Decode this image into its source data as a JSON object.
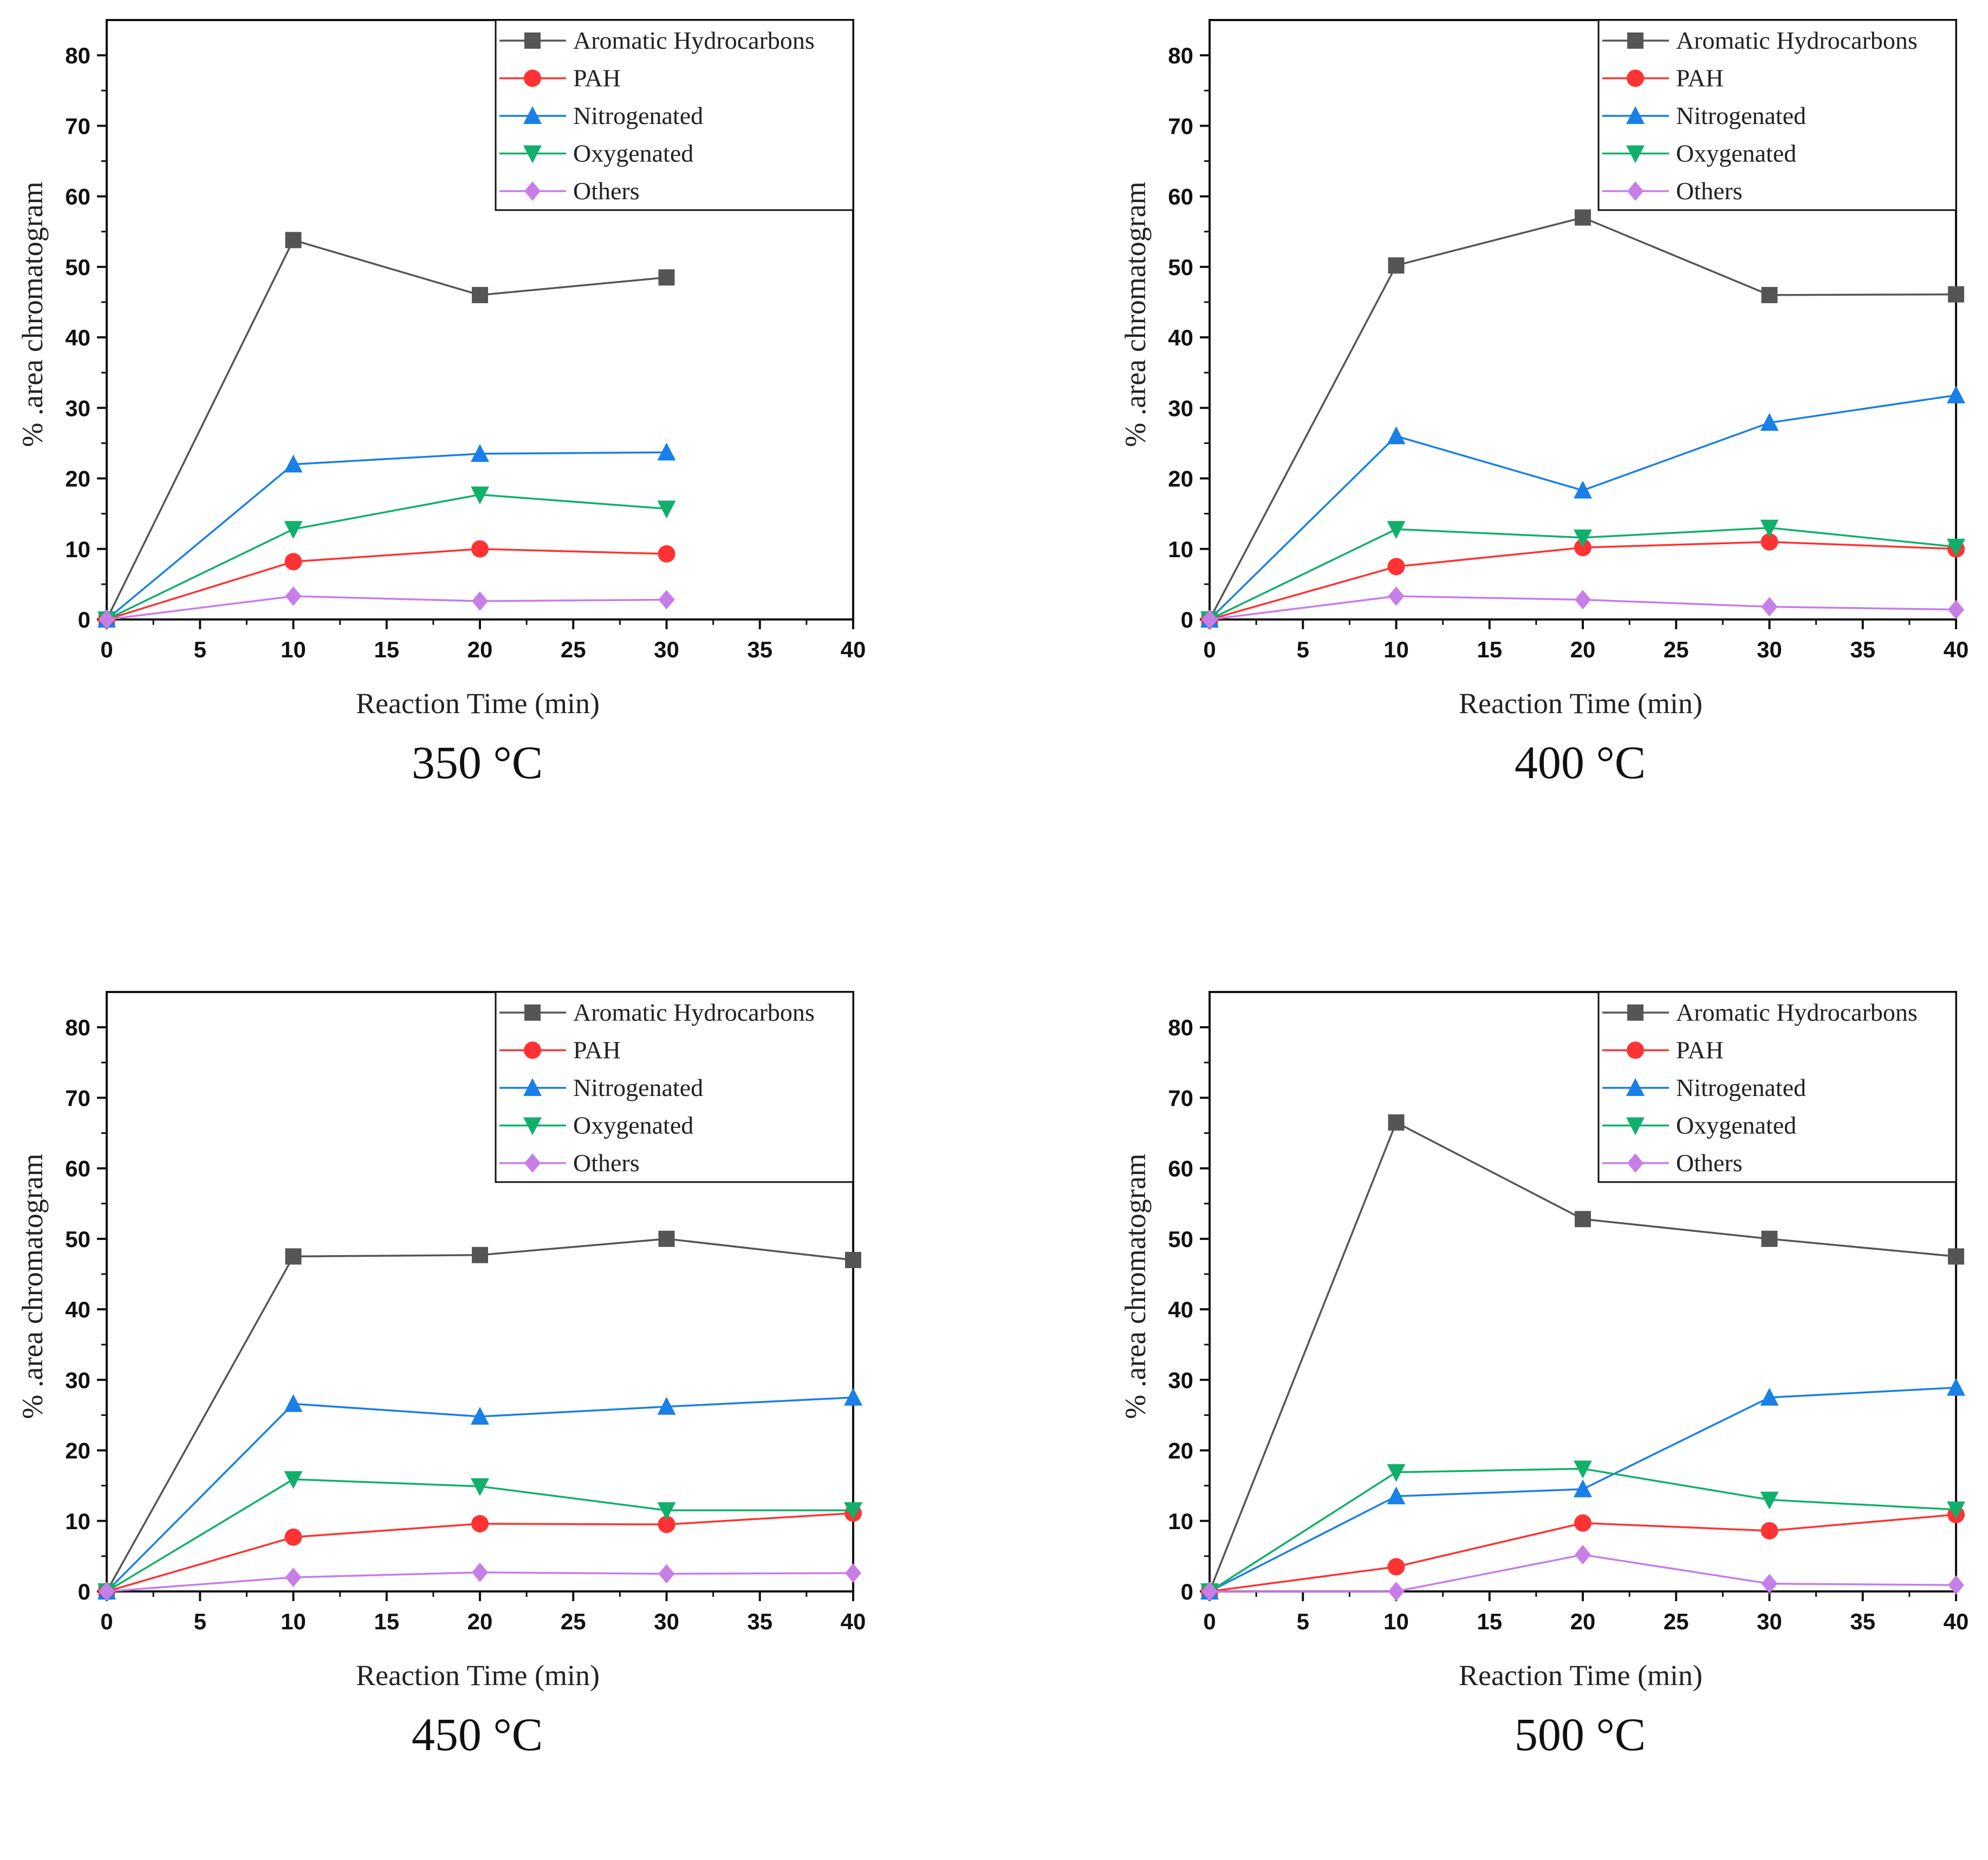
{
  "chart_data": [
    {
      "type": "line",
      "title": "350 °C",
      "xlabel": "Reaction Time (min)",
      "ylabel": "% .area chromatogram",
      "xlim": [
        0,
        40
      ],
      "ylim": [
        0,
        85
      ],
      "xticks": [
        0,
        5,
        10,
        15,
        20,
        25,
        30,
        35,
        40
      ],
      "yticks": [
        0,
        10,
        20,
        30,
        40,
        50,
        60,
        70,
        80
      ],
      "legend": "top-right",
      "x": [
        0,
        10,
        20,
        30
      ],
      "series": [
        {
          "name": "Aromatic Hydrocarbons",
          "color": "#555555",
          "marker": "square",
          "values": [
            0,
            53.8,
            46.0,
            48.5
          ]
        },
        {
          "name": "PAH",
          "color": "#ff3333",
          "marker": "circle",
          "values": [
            0,
            8.2,
            10.0,
            9.3
          ]
        },
        {
          "name": "Nitrogenated",
          "color": "#1a7fe6",
          "marker": "triangle-up",
          "values": [
            0,
            22.0,
            23.5,
            23.7
          ]
        },
        {
          "name": "Oxygenated",
          "color": "#11b06a",
          "marker": "triangle-down",
          "values": [
            0,
            12.8,
            17.7,
            15.7
          ]
        },
        {
          "name": "Others",
          "color": "#c77ee6",
          "marker": "diamond",
          "values": [
            0,
            3.3,
            2.6,
            2.8
          ]
        }
      ]
    },
    {
      "type": "line",
      "title": "400 °C",
      "xlabel": "Reaction Time (min)",
      "ylabel": "% .area chromatogram",
      "xlim": [
        0,
        40
      ],
      "ylim": [
        0,
        85
      ],
      "xticks": [
        0,
        5,
        10,
        15,
        20,
        25,
        30,
        35,
        40
      ],
      "yticks": [
        0,
        10,
        20,
        30,
        40,
        50,
        60,
        70,
        80
      ],
      "legend": "top-right",
      "x": [
        0,
        10,
        20,
        30,
        40
      ],
      "series": [
        {
          "name": "Aromatic Hydrocarbons",
          "color": "#555555",
          "marker": "square",
          "values": [
            0,
            50.2,
            57.0,
            46.0,
            46.1
          ]
        },
        {
          "name": "PAH",
          "color": "#ff3333",
          "marker": "circle",
          "values": [
            0,
            7.5,
            10.2,
            11.0,
            10.0
          ]
        },
        {
          "name": "Nitrogenated",
          "color": "#1a7fe6",
          "marker": "triangle-up",
          "values": [
            0,
            26.0,
            18.3,
            27.9,
            31.8
          ]
        },
        {
          "name": "Oxygenated",
          "color": "#11b06a",
          "marker": "triangle-down",
          "values": [
            0,
            12.8,
            11.6,
            13.0,
            10.3
          ]
        },
        {
          "name": "Others",
          "color": "#c77ee6",
          "marker": "diamond",
          "values": [
            0,
            3.3,
            2.8,
            1.8,
            1.4
          ]
        }
      ]
    },
    {
      "type": "line",
      "title": "450 °C",
      "xlabel": "Reaction Time (min)",
      "ylabel": "% .area chromatogram",
      "xlim": [
        0,
        40
      ],
      "ylim": [
        0,
        85
      ],
      "xticks": [
        0,
        5,
        10,
        15,
        20,
        25,
        30,
        35,
        40
      ],
      "yticks": [
        0,
        10,
        20,
        30,
        40,
        50,
        60,
        70,
        80
      ],
      "legend": "top-right",
      "x": [
        0,
        10,
        20,
        30,
        40
      ],
      "series": [
        {
          "name": "Aromatic Hydrocarbons",
          "color": "#555555",
          "marker": "square",
          "values": [
            0,
            47.5,
            47.7,
            50.0,
            47.0
          ]
        },
        {
          "name": "PAH",
          "color": "#ff3333",
          "marker": "circle",
          "values": [
            0,
            7.7,
            9.6,
            9.5,
            11.1
          ]
        },
        {
          "name": "Nitrogenated",
          "color": "#1a7fe6",
          "marker": "triangle-up",
          "values": [
            0,
            26.6,
            24.8,
            26.2,
            27.5
          ]
        },
        {
          "name": "Oxygenated",
          "color": "#11b06a",
          "marker": "triangle-down",
          "values": [
            0,
            15.9,
            14.9,
            11.5,
            11.5
          ]
        },
        {
          "name": "Others",
          "color": "#c77ee6",
          "marker": "diamond",
          "values": [
            0,
            2.0,
            2.7,
            2.5,
            2.6
          ]
        }
      ]
    },
    {
      "type": "line",
      "title": "500 °C",
      "xlabel": "Reaction Time (min)",
      "ylabel": "% .area chromatogram",
      "xlim": [
        0,
        40
      ],
      "ylim": [
        0,
        85
      ],
      "xticks": [
        0,
        5,
        10,
        15,
        20,
        25,
        30,
        35,
        40
      ],
      "yticks": [
        0,
        10,
        20,
        30,
        40,
        50,
        60,
        70,
        80
      ],
      "legend": "top-right",
      "x": [
        0,
        10,
        20,
        30,
        40
      ],
      "series": [
        {
          "name": "Aromatic Hydrocarbons",
          "color": "#555555",
          "marker": "square",
          "values": [
            0,
            66.5,
            52.8,
            50.0,
            47.5
          ]
        },
        {
          "name": "PAH",
          "color": "#ff3333",
          "marker": "circle",
          "values": [
            0,
            3.5,
            9.7,
            8.6,
            10.9
          ]
        },
        {
          "name": "Nitrogenated",
          "color": "#1a7fe6",
          "marker": "triangle-up",
          "values": [
            0,
            13.5,
            14.5,
            27.5,
            28.9
          ]
        },
        {
          "name": "Oxygenated",
          "color": "#11b06a",
          "marker": "triangle-down",
          "values": [
            0,
            16.9,
            17.4,
            13.0,
            11.6
          ]
        },
        {
          "name": "Others",
          "color": "#c77ee6",
          "marker": "diamond",
          "values": [
            0,
            0,
            5.2,
            1.1,
            0.9
          ]
        }
      ]
    }
  ]
}
